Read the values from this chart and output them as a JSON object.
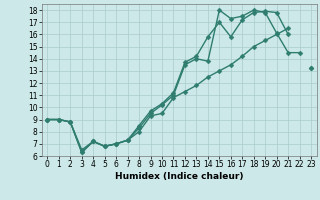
{
  "xlabel": "Humidex (Indice chaleur)",
  "bg_color": "#cce8e8",
  "line_color": "#2e7d6e",
  "grid_color": "#aacccc",
  "xlim": [
    -0.5,
    23.5
  ],
  "ylim": [
    6,
    18.5
  ],
  "xticks": [
    0,
    1,
    2,
    3,
    4,
    5,
    6,
    7,
    8,
    9,
    10,
    11,
    12,
    13,
    14,
    15,
    16,
    17,
    18,
    19,
    20,
    21,
    22,
    23
  ],
  "yticks": [
    6,
    7,
    8,
    9,
    10,
    11,
    12,
    13,
    14,
    15,
    16,
    17,
    18
  ],
  "line1_x": [
    0,
    1,
    2,
    3,
    4,
    5,
    6,
    7,
    8,
    9,
    10,
    11,
    12,
    13,
    14,
    15,
    16,
    17,
    18,
    19,
    20,
    21,
    22
  ],
  "line1_y": [
    9,
    9,
    8.8,
    6.3,
    7.2,
    6.8,
    7.0,
    7.3,
    8.3,
    9.5,
    10.2,
    11.0,
    13.5,
    14.0,
    13.8,
    18.0,
    17.3,
    17.5,
    18.0,
    17.8,
    16.1,
    14.5,
    14.5
  ],
  "line2_x": [
    0,
    1,
    2,
    3,
    4,
    5,
    6,
    7,
    8,
    9,
    10,
    11,
    12,
    13,
    14,
    15,
    16,
    17,
    18,
    19,
    20,
    21,
    22,
    23
  ],
  "line2_y": [
    9,
    9,
    8.8,
    6.5,
    7.2,
    6.8,
    7.0,
    7.3,
    8.5,
    9.7,
    10.3,
    11.2,
    13.7,
    14.2,
    15.8,
    17.0,
    15.8,
    17.2,
    17.8,
    17.9,
    17.8,
    16.0,
    null,
    13.2
  ],
  "line3_x": [
    0,
    1,
    2,
    3,
    4,
    5,
    6,
    7,
    8,
    9,
    10,
    11,
    12,
    13,
    14,
    15,
    16,
    17,
    18,
    19,
    20,
    21,
    22,
    23
  ],
  "line3_y": [
    9.0,
    9.0,
    8.8,
    6.3,
    7.2,
    6.8,
    7.0,
    7.3,
    8.0,
    9.3,
    9.5,
    10.8,
    11.3,
    11.8,
    12.5,
    13.0,
    13.5,
    14.2,
    15.0,
    15.5,
    16.0,
    16.5,
    null,
    13.2
  ],
  "marker_size": 2.5,
  "line_width": 1.0,
  "tick_fontsize": 5.5,
  "label_fontsize": 6.5
}
